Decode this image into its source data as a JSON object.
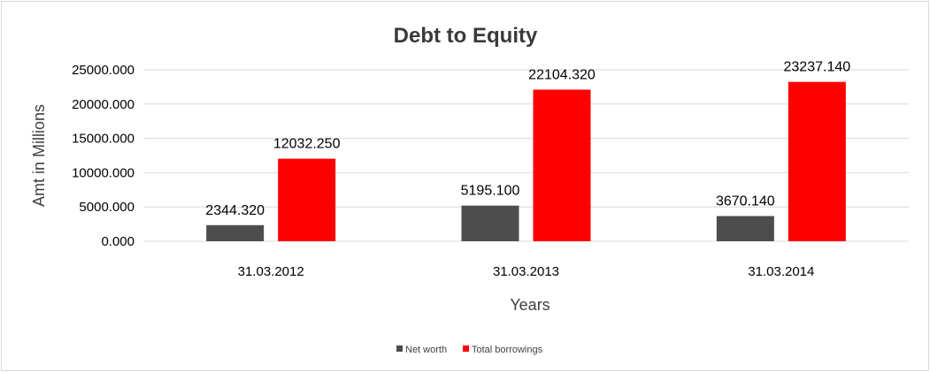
{
  "chart_data": {
    "type": "bar",
    "title": "Debt to Equity",
    "xlabel": "Years",
    "ylabel": "Amt in Millions",
    "categories": [
      "31.03.2012",
      "31.03.2013",
      "31.03.2014"
    ],
    "series": [
      {
        "name": "Net worth",
        "color": "#4d4d4d",
        "values": [
          2344.32,
          5195.1,
          3670.14
        ],
        "labels": [
          "2344.320",
          "5195.100",
          "3670.140"
        ]
      },
      {
        "name": "Total borrowings",
        "color": "#ff0000",
        "values": [
          12032.25,
          22104.32,
          23237.14
        ],
        "labels": [
          "12032.250",
          "22104.320",
          "23237.140"
        ]
      }
    ],
    "ylim": [
      0,
      25000
    ],
    "yticks": [
      0,
      5000,
      10000,
      15000,
      20000,
      25000
    ],
    "ytick_labels": [
      "0.000",
      "5000.000",
      "10000.000",
      "15000.000",
      "20000.000",
      "25000.000"
    ],
    "grid": true,
    "legend_position": "bottom",
    "gridline_color": "#d9d9d9"
  }
}
